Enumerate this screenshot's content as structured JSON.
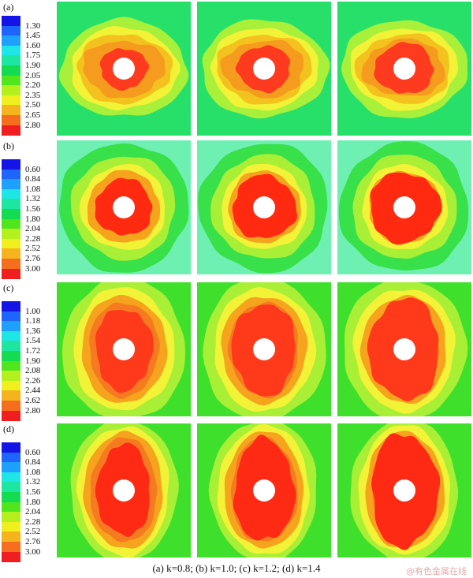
{
  "rows": [
    {
      "label": "(a)",
      "ticks": [
        "1.30",
        "1.45",
        "1.60",
        "1.75",
        "1.90",
        "2.05",
        "2.20",
        "2.35",
        "2.50",
        "2.65",
        "2.80"
      ],
      "background": "#27e06a",
      "bands": [
        "#a8f03a",
        "#f2f237",
        "#f4c21e",
        "#f59b1d"
      ],
      "core": "#ff3b1f",
      "panels": [
        {
          "id": "a1",
          "shape": "butterfly"
        },
        {
          "id": "a2",
          "shape": "butterfly"
        },
        {
          "id": "a3",
          "shape": "butterfly"
        }
      ]
    },
    {
      "label": "(b)",
      "ticks": [
        "0.60",
        "0.84",
        "1.08",
        "1.32",
        "1.56",
        "1.80",
        "2.04",
        "2.28",
        "2.52",
        "2.76",
        "3.00"
      ],
      "background": "#6ef0b2",
      "bands": [
        "#38e04a",
        "#a8ef36",
        "#f2f237",
        "#f6a31d"
      ],
      "core": "#ff2a10",
      "panels": [
        {
          "id": "b1",
          "shape": "round"
        },
        {
          "id": "b2",
          "shape": "round"
        },
        {
          "id": "b3",
          "shape": "round"
        }
      ]
    },
    {
      "label": "(c)",
      "ticks": [
        "1.00",
        "1.18",
        "1.36",
        "1.54",
        "1.72",
        "1.90",
        "2.08",
        "2.26",
        "2.44",
        "2.62",
        "2.80"
      ],
      "background": "#3fe02c",
      "bands": [
        "#a8ef36",
        "#f2f237",
        "#f6a31d",
        "#f57a20"
      ],
      "core": "#ff3a1a",
      "panels": [
        {
          "id": "c1",
          "shape": "vertical"
        },
        {
          "id": "c2",
          "shape": "vertical"
        },
        {
          "id": "c3",
          "shape": "vertical"
        }
      ]
    },
    {
      "label": "(d)",
      "ticks": [
        "0.60",
        "0.84",
        "1.08",
        "1.32",
        "1.56",
        "1.80",
        "2.04",
        "2.28",
        "2.52",
        "2.76",
        "3.00"
      ],
      "background": "#3fe02c",
      "bands": [
        "#a8ef36",
        "#f2f237",
        "#f6a31d",
        "#f57a20"
      ],
      "core": "#ff2a14",
      "panels": [
        {
          "id": "d1",
          "shape": "tall"
        },
        {
          "id": "d2",
          "shape": "tall"
        },
        {
          "id": "d3",
          "shape": "tall"
        }
      ]
    }
  ],
  "colorbar": [
    "#1414e6",
    "#1e64ff",
    "#1ea0ff",
    "#1ee6e6",
    "#1ee6a0",
    "#14dc50",
    "#50e61e",
    "#b4f01e",
    "#f0f01e",
    "#f5b41e",
    "#f56e1e",
    "#f01e1e"
  ],
  "hole_color": "#ffffff",
  "caption": "(a) k=0.8; (b) k=1.0; (c) k=1.2; (d) k=1.4",
  "watermark": "@有色金属在线"
}
